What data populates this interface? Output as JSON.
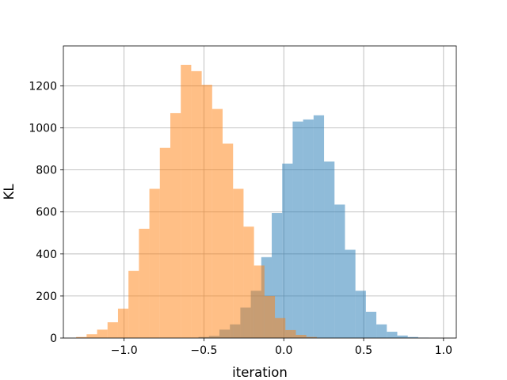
{
  "chart_data": {
    "type": "bar",
    "title": "",
    "xlabel": "iteration",
    "ylabel": "KL",
    "xlim": [
      -1.38,
      1.08
    ],
    "ylim": [
      0,
      1390
    ],
    "grid": true,
    "legend": "none",
    "xticks": [
      -1.0,
      -0.5,
      0.0,
      0.5,
      1.0
    ],
    "xtick_labels": [
      "−1.0",
      "−0.5",
      "0.0",
      "0.5",
      "1.0"
    ],
    "yticks": [
      0,
      200,
      400,
      600,
      800,
      1000,
      1200
    ],
    "ytick_labels": [
      "0",
      "200",
      "400",
      "600",
      "800",
      "1000",
      "1200"
    ],
    "series": [
      {
        "color": "#1f77b4",
        "opacity": 0.5,
        "bin_width": 0.0655,
        "bins": [
          {
            "x0": -0.534,
            "value": 5
          },
          {
            "x0": -0.4685,
            "value": 10
          },
          {
            "x0": -0.403,
            "value": 40
          },
          {
            "x0": -0.3375,
            "value": 65
          },
          {
            "x0": -0.272,
            "value": 145
          },
          {
            "x0": -0.2065,
            "value": 225
          },
          {
            "x0": -0.141,
            "value": 385
          },
          {
            "x0": -0.0755,
            "value": 595
          },
          {
            "x0": -0.01,
            "value": 830
          },
          {
            "x0": 0.0555,
            "value": 1030
          },
          {
            "x0": 0.121,
            "value": 1040
          },
          {
            "x0": 0.1865,
            "value": 1060
          },
          {
            "x0": 0.252,
            "value": 840
          },
          {
            "x0": 0.3175,
            "value": 635
          },
          {
            "x0": 0.383,
            "value": 420
          },
          {
            "x0": 0.4485,
            "value": 225
          },
          {
            "x0": 0.514,
            "value": 125
          },
          {
            "x0": 0.5795,
            "value": 65
          },
          {
            "x0": 0.645,
            "value": 30
          },
          {
            "x0": 0.7105,
            "value": 12
          },
          {
            "x0": 0.776,
            "value": 5
          },
          {
            "x0": 0.8415,
            "value": 2
          }
        ]
      },
      {
        "color": "#ff7f0e",
        "opacity": 0.5,
        "bin_width": 0.0655,
        "bins": [
          {
            "x0": -1.3,
            "value": 5
          },
          {
            "x0": -1.2345,
            "value": 18
          },
          {
            "x0": -1.169,
            "value": 40
          },
          {
            "x0": -1.1035,
            "value": 75
          },
          {
            "x0": -1.038,
            "value": 140
          },
          {
            "x0": -0.9725,
            "value": 320
          },
          {
            "x0": -0.907,
            "value": 520
          },
          {
            "x0": -0.8415,
            "value": 710
          },
          {
            "x0": -0.776,
            "value": 905
          },
          {
            "x0": -0.7105,
            "value": 1070
          },
          {
            "x0": -0.645,
            "value": 1300
          },
          {
            "x0": -0.5795,
            "value": 1270
          },
          {
            "x0": -0.514,
            "value": 1205
          },
          {
            "x0": -0.4485,
            "value": 1090
          },
          {
            "x0": -0.383,
            "value": 925
          },
          {
            "x0": -0.3175,
            "value": 710
          },
          {
            "x0": -0.252,
            "value": 530
          },
          {
            "x0": -0.1865,
            "value": 345
          },
          {
            "x0": -0.121,
            "value": 200
          },
          {
            "x0": -0.0555,
            "value": 95
          },
          {
            "x0": 0.01,
            "value": 38
          },
          {
            "x0": 0.0755,
            "value": 15
          },
          {
            "x0": 0.141,
            "value": 5
          }
        ]
      }
    ]
  }
}
